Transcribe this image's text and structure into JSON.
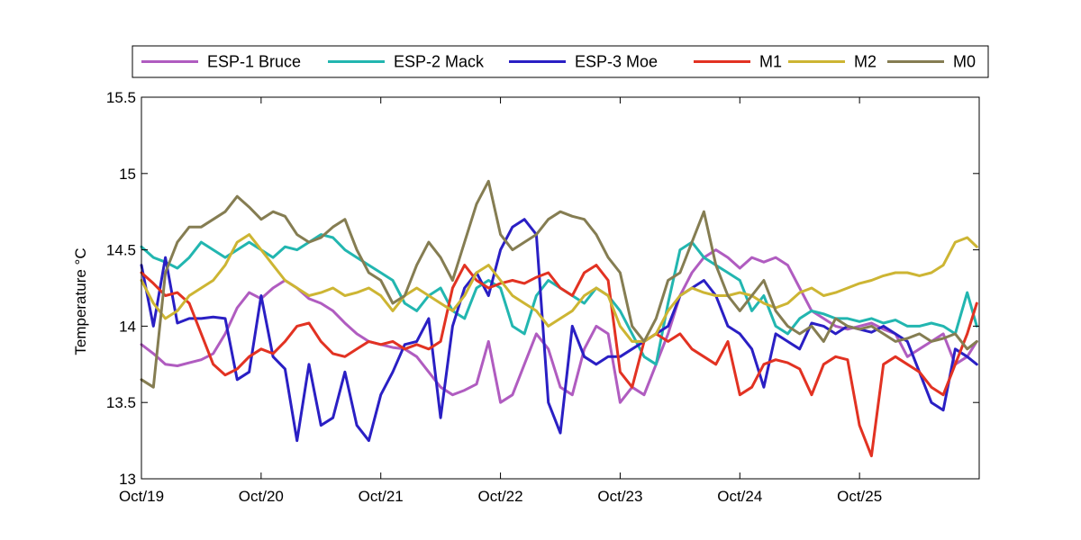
{
  "chart_data": {
    "type": "line",
    "title": "",
    "xlabel": "",
    "ylabel": "Temperature °C",
    "ylim": [
      13,
      15.5
    ],
    "xlim": [
      0,
      7
    ],
    "y_ticks": [
      13,
      13.5,
      14,
      14.5,
      15,
      15.5
    ],
    "y_tick_labels": [
      "13",
      "13.5",
      "14",
      "14.5",
      "15",
      "15.5"
    ],
    "x_ticks": [
      0,
      1,
      2,
      3,
      4,
      5,
      6
    ],
    "x_tick_labels": [
      "Oct/19",
      "Oct/20",
      "Oct/21",
      "Oct/22",
      "Oct/23",
      "Oct/24",
      "Oct/25"
    ],
    "grid": false,
    "legend_position": "top",
    "x_units": "days since Oct/19",
    "series": [
      {
        "name": "ESP-1 Bruce",
        "color": "#b05cc0",
        "x": [
          0,
          0.1,
          0.2,
          0.3,
          0.4,
          0.5,
          0.6,
          0.7,
          0.8,
          0.9,
          1.0,
          1.1,
          1.2,
          1.3,
          1.4,
          1.5,
          1.6,
          1.7,
          1.8,
          1.9,
          2.0,
          2.1,
          2.2,
          2.3,
          2.4,
          2.5,
          2.6,
          2.7,
          2.8,
          2.9,
          3.0,
          3.1,
          3.2,
          3.3,
          3.4,
          3.5,
          3.6,
          3.7,
          3.8,
          3.9,
          4.0,
          4.1,
          4.2,
          4.3,
          4.4,
          4.5,
          4.6,
          4.7,
          4.8,
          4.9,
          5.0,
          5.1,
          5.2,
          5.3,
          5.4,
          5.5,
          5.6,
          5.7,
          5.8,
          5.9,
          6.0,
          6.1,
          6.2,
          6.3,
          6.4,
          6.5,
          6.6,
          6.7,
          6.8,
          6.9,
          6.98
        ],
        "values": [
          13.88,
          13.82,
          13.75,
          13.74,
          13.76,
          13.78,
          13.82,
          13.95,
          14.12,
          14.22,
          14.18,
          14.25,
          14.3,
          14.25,
          14.18,
          14.15,
          14.1,
          14.02,
          13.95,
          13.9,
          13.88,
          13.86,
          13.85,
          13.8,
          13.7,
          13.6,
          13.55,
          13.58,
          13.62,
          13.9,
          13.5,
          13.55,
          13.75,
          13.95,
          13.85,
          13.6,
          13.55,
          13.85,
          14.0,
          13.95,
          13.5,
          13.6,
          13.55,
          13.75,
          13.95,
          14.2,
          14.35,
          14.45,
          14.5,
          14.45,
          14.38,
          14.45,
          14.42,
          14.45,
          14.4,
          14.25,
          14.1,
          14.05,
          14.0,
          13.98,
          14.0,
          14.02,
          13.98,
          13.95,
          13.8,
          13.85,
          13.9,
          13.95,
          13.75,
          13.8,
          13.9
        ]
      },
      {
        "name": "ESP-2 Mack",
        "color": "#22b6b0",
        "x": [
          0,
          0.1,
          0.2,
          0.3,
          0.4,
          0.5,
          0.6,
          0.7,
          0.8,
          0.9,
          1.0,
          1.1,
          1.2,
          1.3,
          1.4,
          1.5,
          1.6,
          1.7,
          1.8,
          1.9,
          2.0,
          2.1,
          2.2,
          2.3,
          2.4,
          2.5,
          2.6,
          2.7,
          2.8,
          2.9,
          3.0,
          3.1,
          3.2,
          3.3,
          3.4,
          3.5,
          3.6,
          3.7,
          3.8,
          3.9,
          4.0,
          4.1,
          4.2,
          4.3,
          4.4,
          4.5,
          4.6,
          4.7,
          4.8,
          4.9,
          5.0,
          5.1,
          5.2,
          5.3,
          5.4,
          5.5,
          5.6,
          5.7,
          5.8,
          5.9,
          6.0,
          6.1,
          6.2,
          6.3,
          6.4,
          6.5,
          6.6,
          6.7,
          6.8,
          6.9,
          6.98
        ],
        "values": [
          14.52,
          14.45,
          14.42,
          14.38,
          14.45,
          14.55,
          14.5,
          14.45,
          14.5,
          14.55,
          14.5,
          14.45,
          14.52,
          14.5,
          14.55,
          14.6,
          14.58,
          14.5,
          14.45,
          14.4,
          14.35,
          14.3,
          14.15,
          14.1,
          14.2,
          14.25,
          14.1,
          14.05,
          14.25,
          14.3,
          14.25,
          14.0,
          13.95,
          14.2,
          14.3,
          14.25,
          14.2,
          14.15,
          14.25,
          14.2,
          14.1,
          13.95,
          13.8,
          13.75,
          14.15,
          14.5,
          14.55,
          14.45,
          14.4,
          14.35,
          14.3,
          14.1,
          14.2,
          14.0,
          13.95,
          14.05,
          14.1,
          14.08,
          14.05,
          14.05,
          14.03,
          14.05,
          14.02,
          14.04,
          14.0,
          14.0,
          14.02,
          14.0,
          13.95,
          14.22,
          14.0
        ]
      },
      {
        "name": "ESP-3 Moe",
        "color": "#2a1fc4",
        "x": [
          0,
          0.1,
          0.2,
          0.3,
          0.4,
          0.5,
          0.6,
          0.7,
          0.8,
          0.9,
          1.0,
          1.1,
          1.2,
          1.3,
          1.4,
          1.5,
          1.6,
          1.7,
          1.8,
          1.9,
          2.0,
          2.1,
          2.2,
          2.3,
          2.4,
          2.5,
          2.6,
          2.7,
          2.8,
          2.9,
          3.0,
          3.1,
          3.2,
          3.3,
          3.4,
          3.5,
          3.6,
          3.7,
          3.8,
          3.9,
          4.0,
          4.1,
          4.2,
          4.3,
          4.4,
          4.5,
          4.6,
          4.7,
          4.8,
          4.9,
          5.0,
          5.1,
          5.2,
          5.3,
          5.4,
          5.5,
          5.6,
          5.7,
          5.8,
          5.9,
          6.0,
          6.1,
          6.2,
          6.3,
          6.4,
          6.5,
          6.6,
          6.7,
          6.8,
          6.9,
          6.98
        ],
        "values": [
          14.4,
          14.0,
          14.45,
          14.02,
          14.05,
          14.05,
          14.06,
          14.05,
          13.65,
          13.7,
          14.2,
          13.8,
          13.72,
          13.25,
          13.75,
          13.35,
          13.4,
          13.7,
          13.35,
          13.25,
          13.55,
          13.7,
          13.88,
          13.9,
          14.05,
          13.4,
          14.0,
          14.25,
          14.35,
          14.2,
          14.5,
          14.65,
          14.7,
          14.6,
          13.5,
          13.3,
          14.0,
          13.8,
          13.75,
          13.8,
          13.8,
          13.85,
          13.9,
          13.95,
          14.0,
          14.2,
          14.25,
          14.3,
          14.2,
          14.0,
          13.95,
          13.85,
          13.6,
          13.95,
          13.9,
          13.85,
          14.02,
          14.0,
          13.95,
          14.0,
          13.98,
          13.96,
          14.0,
          13.95,
          13.9,
          13.7,
          13.5,
          13.45,
          13.85,
          13.8,
          13.75
        ]
      },
      {
        "name": "M1",
        "color": "#e23222",
        "x": [
          0,
          0.1,
          0.2,
          0.3,
          0.4,
          0.5,
          0.6,
          0.7,
          0.8,
          0.9,
          1.0,
          1.1,
          1.2,
          1.3,
          1.4,
          1.5,
          1.6,
          1.7,
          1.8,
          1.9,
          2.0,
          2.1,
          2.2,
          2.3,
          2.4,
          2.5,
          2.6,
          2.7,
          2.8,
          2.9,
          3.0,
          3.1,
          3.2,
          3.3,
          3.4,
          3.5,
          3.6,
          3.7,
          3.8,
          3.9,
          4.0,
          4.1,
          4.2,
          4.3,
          4.4,
          4.5,
          4.6,
          4.7,
          4.8,
          4.9,
          5.0,
          5.1,
          5.2,
          5.3,
          5.4,
          5.5,
          5.6,
          5.7,
          5.8,
          5.9,
          6.0,
          6.1,
          6.2,
          6.3,
          6.4,
          6.5,
          6.6,
          6.7,
          6.8,
          6.9,
          6.98
        ],
        "values": [
          14.35,
          14.28,
          14.2,
          14.22,
          14.15,
          13.95,
          13.75,
          13.68,
          13.72,
          13.8,
          13.85,
          13.82,
          13.9,
          14.0,
          14.02,
          13.9,
          13.82,
          13.8,
          13.85,
          13.9,
          13.88,
          13.9,
          13.85,
          13.88,
          13.85,
          13.9,
          14.25,
          14.4,
          14.3,
          14.25,
          14.28,
          14.3,
          14.28,
          14.32,
          14.35,
          14.25,
          14.2,
          14.35,
          14.4,
          14.3,
          13.7,
          13.6,
          13.9,
          13.95,
          13.9,
          13.95,
          13.85,
          13.8,
          13.75,
          13.9,
          13.55,
          13.6,
          13.75,
          13.78,
          13.76,
          13.72,
          13.55,
          13.75,
          13.8,
          13.78,
          13.35,
          13.15,
          13.75,
          13.8,
          13.75,
          13.7,
          13.6,
          13.55,
          13.75,
          13.95,
          14.15
        ]
      },
      {
        "name": "M2",
        "color": "#cdb533",
        "x": [
          0,
          0.1,
          0.2,
          0.3,
          0.4,
          0.5,
          0.6,
          0.7,
          0.8,
          0.9,
          1.0,
          1.1,
          1.2,
          1.3,
          1.4,
          1.5,
          1.6,
          1.7,
          1.8,
          1.9,
          2.0,
          2.1,
          2.2,
          2.3,
          2.4,
          2.5,
          2.6,
          2.7,
          2.8,
          2.9,
          3.0,
          3.1,
          3.2,
          3.3,
          3.4,
          3.5,
          3.6,
          3.7,
          3.8,
          3.9,
          4.0,
          4.1,
          4.2,
          4.3,
          4.4,
          4.5,
          4.6,
          4.7,
          4.8,
          4.9,
          5.0,
          5.1,
          5.2,
          5.3,
          5.4,
          5.5,
          5.6,
          5.7,
          5.8,
          5.9,
          6.0,
          6.1,
          6.2,
          6.3,
          6.4,
          6.5,
          6.6,
          6.7,
          6.8,
          6.9,
          6.98
        ],
        "values": [
          14.3,
          14.15,
          14.05,
          14.1,
          14.2,
          14.25,
          14.3,
          14.4,
          14.55,
          14.6,
          14.5,
          14.4,
          14.3,
          14.25,
          14.2,
          14.22,
          14.25,
          14.2,
          14.22,
          14.25,
          14.2,
          14.1,
          14.2,
          14.25,
          14.2,
          14.15,
          14.1,
          14.2,
          14.35,
          14.4,
          14.3,
          14.2,
          14.15,
          14.1,
          14.0,
          14.05,
          14.1,
          14.2,
          14.25,
          14.2,
          14.0,
          13.9,
          13.9,
          13.95,
          14.1,
          14.2,
          14.25,
          14.22,
          14.2,
          14.2,
          14.22,
          14.2,
          14.15,
          14.12,
          14.15,
          14.22,
          14.25,
          14.2,
          14.22,
          14.25,
          14.28,
          14.3,
          14.33,
          14.35,
          14.35,
          14.33,
          14.35,
          14.4,
          14.55,
          14.58,
          14.52
        ]
      },
      {
        "name": "M0",
        "color": "#857d52",
        "x": [
          0,
          0.1,
          0.2,
          0.3,
          0.4,
          0.5,
          0.6,
          0.7,
          0.8,
          0.9,
          1.0,
          1.1,
          1.2,
          1.3,
          1.4,
          1.5,
          1.6,
          1.7,
          1.8,
          1.9,
          2.0,
          2.1,
          2.2,
          2.3,
          2.4,
          2.5,
          2.6,
          2.7,
          2.8,
          2.9,
          3.0,
          3.1,
          3.2,
          3.3,
          3.4,
          3.5,
          3.6,
          3.7,
          3.8,
          3.9,
          4.0,
          4.1,
          4.2,
          4.3,
          4.4,
          4.5,
          4.6,
          4.7,
          4.8,
          4.9,
          5.0,
          5.1,
          5.2,
          5.3,
          5.4,
          5.5,
          5.6,
          5.7,
          5.8,
          5.9,
          6.0,
          6.1,
          6.2,
          6.3,
          6.4,
          6.5,
          6.6,
          6.7,
          6.8,
          6.9,
          6.98
        ],
        "values": [
          13.65,
          13.6,
          14.35,
          14.55,
          14.65,
          14.65,
          14.7,
          14.75,
          14.85,
          14.78,
          14.7,
          14.75,
          14.72,
          14.6,
          14.55,
          14.58,
          14.65,
          14.7,
          14.5,
          14.35,
          14.3,
          14.15,
          14.2,
          14.4,
          14.55,
          14.45,
          14.3,
          14.55,
          14.8,
          14.95,
          14.6,
          14.5,
          14.55,
          14.6,
          14.7,
          14.75,
          14.72,
          14.7,
          14.6,
          14.45,
          14.35,
          14.0,
          13.9,
          14.05,
          14.3,
          14.35,
          14.55,
          14.75,
          14.4,
          14.2,
          14.1,
          14.2,
          14.3,
          14.1,
          14.0,
          13.95,
          14.0,
          13.9,
          14.05,
          14.0,
          13.98,
          14.0,
          13.95,
          13.9,
          13.92,
          13.95,
          13.9,
          13.92,
          13.95,
          13.85,
          13.9
        ]
      }
    ]
  }
}
